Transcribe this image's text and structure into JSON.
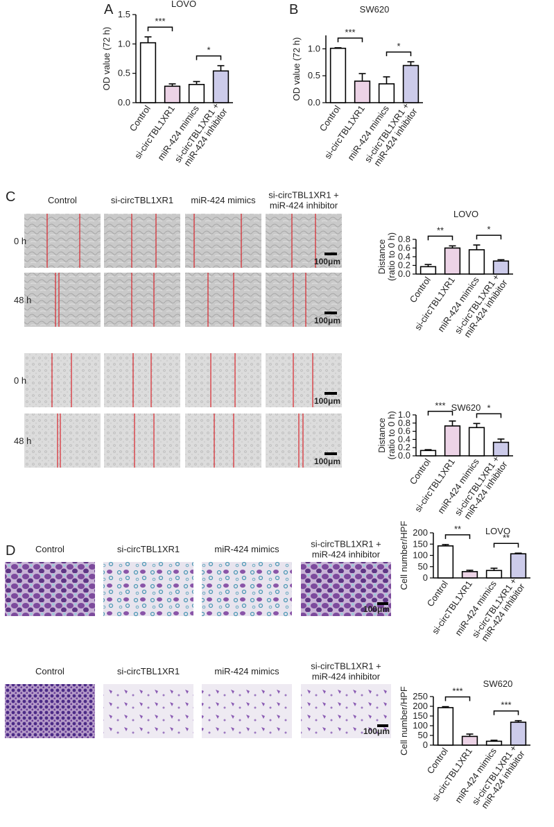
{
  "panels": {
    "letters": [
      "A",
      "B",
      "C",
      "D"
    ],
    "migration": {
      "columns": [
        "Control",
        "si-circTBL1XR1",
        "miR-424 mimics",
        [
          "si-circTBL1XR1 +",
          "miR-424 inhibitor"
        ]
      ],
      "rows": [
        "0 h",
        "48 h",
        "0 h",
        "48 h"
      ],
      "scale_bar": "100μm"
    },
    "invasion": {
      "columns": [
        "Control",
        "si-circTBL1XR1",
        "miR-424 mimics",
        [
          "si-circTBL1XR1 +",
          "miR-424 inhibitor"
        ]
      ],
      "scale_bar": "100μm"
    }
  },
  "chart_data": [
    {
      "type": "bar",
      "title": "LOVO",
      "ylabel": [
        "OD value (72 h)"
      ],
      "categories": [
        "Control",
        "si-circTBL1XR1",
        "miR-424 mimics",
        [
          "si-circTBL1XR1 +",
          "miR-424 inhibitor"
        ]
      ],
      "values": [
        1.02,
        0.28,
        0.31,
        0.54
      ],
      "errors": [
        0.1,
        0.04,
        0.05,
        0.09
      ],
      "colors": [
        "#ffffff",
        "#ecd3e6",
        "#ffffff",
        "#cccbea"
      ],
      "significance": [
        "***",
        "*"
      ],
      "ylim": [
        0,
        1.5
      ],
      "yticks": [
        {
          "value": 0,
          "label": "0.0"
        },
        0.5,
        {
          "value": 1,
          "label": "1.0"
        },
        1.5
      ]
    },
    {
      "type": "bar",
      "title": "SW620",
      "ylabel": [
        "OD value (72 h)"
      ],
      "categories": [
        "Control",
        "si-circTBL1XR1",
        "miR-424 mimics",
        [
          "si-circTBL1XR1 +",
          "miR-424 inhibitor"
        ]
      ],
      "values": [
        1.01,
        0.4,
        0.35,
        0.69
      ],
      "errors": [
        0.01,
        0.14,
        0.13,
        0.07
      ],
      "colors": [
        "#ffffff",
        "#ecd3e6",
        "#ffffff",
        "#cccbea"
      ],
      "significance": [
        "***",
        "*"
      ],
      "ylim": [
        0,
        1.25
      ],
      "yticks": [
        {
          "value": 0,
          "label": "0.0"
        },
        0.5,
        {
          "value": 1,
          "label": "1.0"
        }
      ]
    },
    {
      "type": "bar",
      "title": "LOVO",
      "ylabel": [
        "Distance",
        "(ratio to 0 h)"
      ],
      "categories": [
        "Control",
        "si-circTBL1XR1",
        "miR-424 mimics",
        [
          "si-circTBL1XR1 +",
          "miR-424 inhibitor"
        ]
      ],
      "values": [
        0.17,
        0.6,
        0.56,
        0.3
      ],
      "errors": [
        0.05,
        0.05,
        0.11,
        0.03
      ],
      "colors": [
        "#ffffff",
        "#ecd3e6",
        "#ffffff",
        "#cccbea"
      ],
      "significance": [
        "**",
        "*"
      ],
      "ylim": [
        0,
        0.8
      ],
      "yticks": [
        {
          "value": 0,
          "label": "0.0"
        },
        0.2,
        0.4,
        0.6,
        0.8
      ]
    },
    {
      "type": "bar",
      "title": "SW620",
      "ylabel": [
        "Distance",
        "(ratio to 0 h)"
      ],
      "categories": [
        "Control",
        "si-circTBL1XR1",
        "miR-424 mimics",
        [
          "si-circTBL1XR1 +",
          "miR-424 inhibitor"
        ]
      ],
      "values": [
        0.13,
        0.73,
        0.69,
        0.33
      ],
      "errors": [
        0.02,
        0.12,
        0.1,
        0.08
      ],
      "colors": [
        "#ffffff",
        "#ecd3e6",
        "#ffffff",
        "#cccbea"
      ],
      "significance": [
        "***",
        "*"
      ],
      "ylim": [
        0,
        1
      ],
      "yticks": [
        {
          "value": 0,
          "label": "0.0"
        },
        0.2,
        0.4,
        0.6,
        0.8,
        {
          "value": 1,
          "label": "1.0"
        }
      ]
    },
    {
      "type": "bar",
      "title": "LOVO",
      "ylabel": [
        "Cell number/HPF"
      ],
      "categories": [
        "Control",
        "si-circTBL1XR1",
        "miR-424 mimics",
        [
          "si-circTBL1XR1 +",
          "miR-424 inhibitor"
        ]
      ],
      "values": [
        142,
        28,
        33,
        107
      ],
      "errors": [
        6,
        6,
        10,
        3
      ],
      "colors": [
        "#ffffff",
        "#ecd3e6",
        "#ffffff",
        "#cccbea"
      ],
      "significance": [
        "**",
        "**"
      ],
      "ylim": [
        0,
        200
      ],
      "yticks": [
        0,
        50,
        100,
        150,
        200
      ]
    },
    {
      "type": "bar",
      "title": "SW620",
      "ylabel": [
        "Cell number/HPF"
      ],
      "categories": [
        "Control",
        "si-circTBL1XR1",
        "miR-424 mimics",
        [
          "si-circTBL1XR1 +",
          "miR-424 inhibitor"
        ]
      ],
      "values": [
        193,
        45,
        20,
        118
      ],
      "errors": [
        5,
        12,
        5,
        8
      ],
      "colors": [
        "#ffffff",
        "#ecd3e6",
        "#ffffff",
        "#cccbea"
      ],
      "significance": [
        "***",
        "***"
      ],
      "ylim": [
        0,
        250
      ],
      "yticks": [
        0,
        50,
        100,
        150,
        200,
        250
      ]
    }
  ]
}
